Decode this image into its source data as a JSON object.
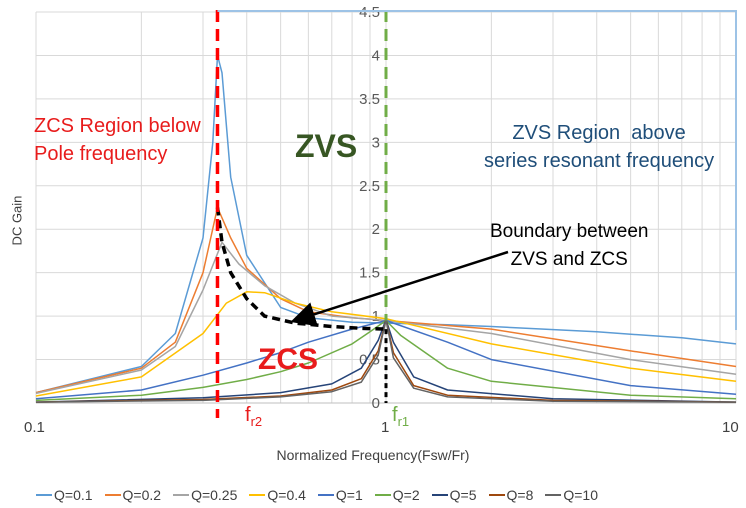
{
  "chart_data": {
    "type": "line",
    "x_scale": "log",
    "xlim": [
      0.1,
      10
    ],
    "ylim": [
      0,
      4.5
    ],
    "xlabel": "Normalized Frequency(Fsw/Fr)",
    "ylabel": "DC Gain",
    "x_tick_labels": [
      "0.1",
      "1",
      "10"
    ],
    "y_tick_labels": [
      "0",
      "0.5",
      "1",
      "1.5",
      "2",
      "2.5",
      "3",
      "3.5",
      "4",
      "4.5"
    ],
    "grid": true,
    "legend_position": "bottom",
    "pole_frequency": 0.33,
    "resonant_frequency": 1.0,
    "series": [
      {
        "name": "Q=0.1",
        "color": "#5b9bd5",
        "x": [
          0.1,
          0.2,
          0.25,
          0.3,
          0.32,
          0.33,
          0.34,
          0.36,
          0.4,
          0.5,
          0.6,
          0.8,
          1.0,
          1.5,
          2,
          4,
          7,
          10
        ],
        "y": [
          0.12,
          0.42,
          0.8,
          1.9,
          3.0,
          4.0,
          3.8,
          2.6,
          1.7,
          1.1,
          0.98,
          0.93,
          0.92,
          0.9,
          0.88,
          0.82,
          0.75,
          0.68
        ]
      },
      {
        "name": "Q=0.2",
        "color": "#ed7d31",
        "x": [
          0.1,
          0.2,
          0.25,
          0.3,
          0.33,
          0.36,
          0.4,
          0.5,
          0.6,
          0.8,
          1.0,
          2,
          5,
          10
        ],
        "y": [
          0.12,
          0.4,
          0.7,
          1.5,
          2.25,
          1.9,
          1.55,
          1.2,
          1.05,
          0.98,
          0.95,
          0.85,
          0.6,
          0.42
        ]
      },
      {
        "name": "Q=0.25",
        "color": "#a5a5a5",
        "x": [
          0.1,
          0.2,
          0.25,
          0.3,
          0.34,
          0.38,
          0.45,
          0.55,
          0.7,
          1.0,
          2,
          5,
          10
        ],
        "y": [
          0.11,
          0.38,
          0.65,
          1.3,
          1.85,
          1.6,
          1.35,
          1.15,
          1.0,
          0.95,
          0.8,
          0.5,
          0.33
        ]
      },
      {
        "name": "Q=0.4",
        "color": "#ffc000",
        "x": [
          0.1,
          0.2,
          0.3,
          0.35,
          0.4,
          0.45,
          0.55,
          0.7,
          1.0,
          2,
          5,
          10
        ],
        "y": [
          0.08,
          0.3,
          0.8,
          1.15,
          1.28,
          1.27,
          1.15,
          1.05,
          0.97,
          0.68,
          0.4,
          0.25
        ]
      },
      {
        "name": "Q=1",
        "color": "#4472c4",
        "x": [
          0.1,
          0.2,
          0.3,
          0.4,
          0.5,
          0.6,
          0.8,
          1.0,
          1.5,
          2,
          5,
          10
        ],
        "y": [
          0.05,
          0.15,
          0.32,
          0.46,
          0.58,
          0.7,
          0.85,
          0.95,
          0.7,
          0.5,
          0.2,
          0.1
        ]
      },
      {
        "name": "Q=2",
        "color": "#70ad47",
        "x": [
          0.1,
          0.2,
          0.3,
          0.4,
          0.5,
          0.6,
          0.8,
          0.9,
          1.0,
          1.1,
          1.5,
          2,
          5,
          10
        ],
        "y": [
          0.03,
          0.09,
          0.18,
          0.27,
          0.36,
          0.46,
          0.68,
          0.82,
          0.95,
          0.78,
          0.4,
          0.25,
          0.09,
          0.05
        ]
      },
      {
        "name": "Q=5",
        "color": "#264478",
        "x": [
          0.1,
          0.3,
          0.5,
          0.7,
          0.85,
          0.95,
          1.0,
          1.05,
          1.2,
          1.5,
          3,
          10
        ],
        "y": [
          0.01,
          0.06,
          0.12,
          0.22,
          0.4,
          0.72,
          0.96,
          0.7,
          0.3,
          0.15,
          0.05,
          0.01
        ]
      },
      {
        "name": "Q=8",
        "color": "#9e480e",
        "x": [
          0.1,
          0.3,
          0.5,
          0.7,
          0.85,
          0.95,
          1.0,
          1.05,
          1.2,
          1.5,
          3,
          10
        ],
        "y": [
          0.01,
          0.04,
          0.08,
          0.15,
          0.28,
          0.6,
          0.96,
          0.58,
          0.2,
          0.09,
          0.03,
          0.01
        ]
      },
      {
        "name": "Q=10",
        "color": "#636363",
        "x": [
          0.1,
          0.3,
          0.5,
          0.7,
          0.85,
          0.95,
          1.0,
          1.05,
          1.2,
          1.5,
          3,
          10
        ],
        "y": [
          0.01,
          0.03,
          0.07,
          0.13,
          0.24,
          0.55,
          0.96,
          0.52,
          0.17,
          0.07,
          0.02,
          0.01
        ]
      }
    ],
    "boundary_curve": {
      "name": "Boundary between ZVS and ZCS",
      "x": [
        0.33,
        0.34,
        0.36,
        0.4,
        0.45,
        0.55,
        0.7,
        0.85,
        1.0
      ],
      "y": [
        2.25,
        1.85,
        1.5,
        1.2,
        1.0,
        0.92,
        0.88,
        0.86,
        0.85
      ]
    },
    "annotations": {
      "zcs_region": "ZCS Region below\nPole frequency",
      "zvs_region": "ZVS Region  above\nseries resonant frequency",
      "zvs": "ZVS",
      "zcs": "ZCS",
      "boundary": "Boundary between\nZVS and ZCS",
      "fr2": [
        "f",
        "r2"
      ],
      "fr1": [
        "f",
        "r1"
      ]
    }
  }
}
